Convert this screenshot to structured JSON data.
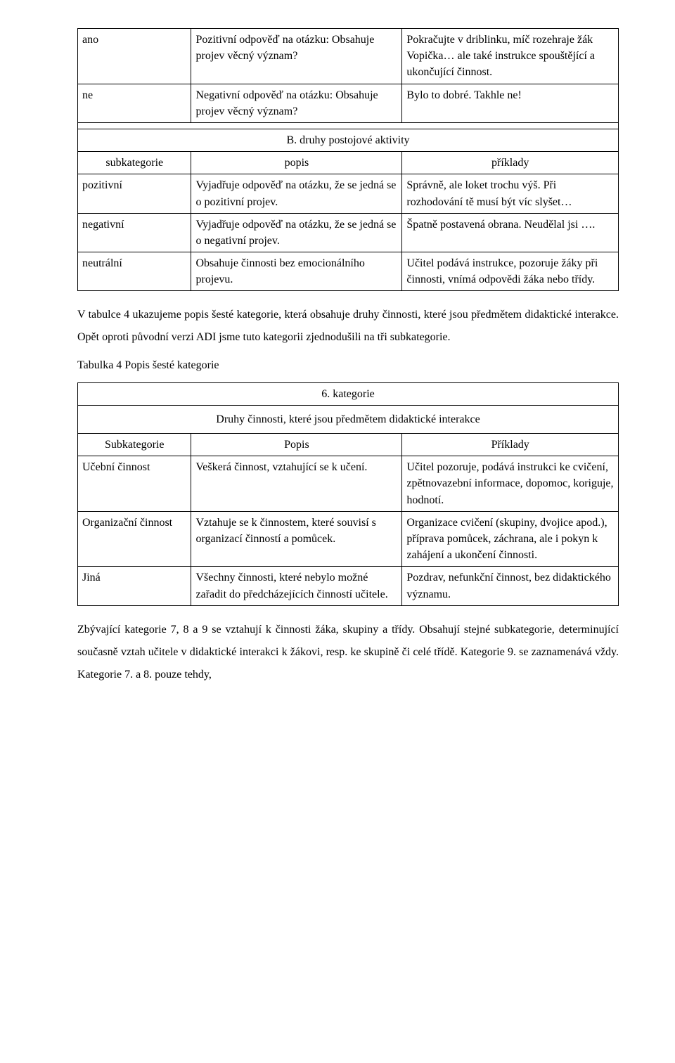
{
  "table1": {
    "r1": {
      "c1": "ano",
      "c2": "Pozitivní odpověď na otázku: Obsahuje projev věcný význam?",
      "c3": "Pokračujte v driblinku, míč rozehraje žák Vopička… ale také instrukce spouštějící a ukončující činnost."
    },
    "r2": {
      "c1": "ne",
      "c2": "Negativní  odpověď na otázku: Obsahuje projev věcný význam?",
      "c3": "Bylo to dobré. Takhle ne!"
    },
    "header_b": "B. druhy postojové aktivity",
    "h": {
      "c1": "subkategorie",
      "c2": "popis",
      "c3": "příklady"
    },
    "r3": {
      "c1": "pozitivní",
      "c2": "Vyjadřuje odpověď na otázku, že se jedná se o pozitivní projev.",
      "c3": "Správně, ale loket trochu výš. Při rozhodování tě musí být víc slyšet…"
    },
    "r4": {
      "c1": "negativní",
      "c2": "Vyjadřuje odpověď na otázku, že se jedná se o negativní projev.",
      "c3": "Špatně postavená obrana. Neudělal jsi …."
    },
    "r5": {
      "c1": "neutrální",
      "c2": "Obsahuje činnosti bez emocionálního projevu.",
      "c3": "Učitel podává instrukce,  pozoruje žáky při činnosti, vnímá odpovědi žáka nebo třídy."
    }
  },
  "para1": "V tabulce 4 ukazujeme popis šesté kategorie, která obsahuje druhy činnosti, které jsou předmětem didaktické interakce. Opět oproti původní verzi ADI jsme tuto kategorii zjednodušili na tři subkategorie.",
  "tab4_caption": "Tabulka 4   Popis šesté kategorie",
  "table2": {
    "title": "6. kategorie",
    "subtitle": "Druhy činnosti, které jsou předmětem didaktické interakce",
    "h": {
      "c1": "Subkategorie",
      "c2": "Popis",
      "c3": "Příklady"
    },
    "r1": {
      "c1": "Učební činnost",
      "c2": "Veškerá činnost, vztahující se k učení.",
      "c3": "Učitel pozoruje, podává instrukci ke cvičení, zpětnovazební informace, dopomoc, koriguje, hodnotí."
    },
    "r2": {
      "c1": "Organizační činnost",
      "c2": "Vztahuje se k činnostem, které souvisí s organizací činností a pomůcek.",
      "c3": "Organizace cvičení (skupiny, dvojice apod.), příprava pomůcek, záchrana, ale i pokyn k zahájení a ukončení činnosti."
    },
    "r3": {
      "c1": "Jiná",
      "c2": "Všechny činnosti, které nebylo možné zařadit do předcházejících činností učitele.",
      "c3": "Pozdrav, nefunkční činnost, bez didaktického významu."
    }
  },
  "para2": "Zbývající kategorie 7, 8 a 9 se vztahují k činnosti žáka, skupiny a třídy. Obsahují stejné subkategorie, determinující současně vztah učitele v didaktické interakci k žákovi, resp. ke skupině či celé třídě. Kategorie 9. se zaznamenává vždy. Kategorie 7. a 8. pouze tehdy,"
}
